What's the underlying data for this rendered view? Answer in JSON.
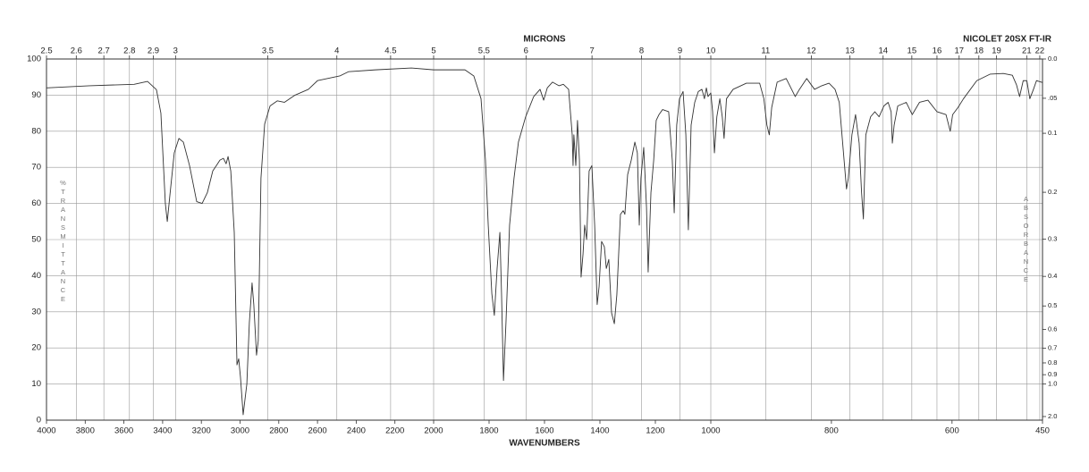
{
  "chart_data": {
    "type": "line",
    "title": "NICOLET 20SX FT-IR",
    "x_label": "WAVENUMBERS",
    "x2_label": "MICRONS",
    "y_label": "%TRANSMITTANCE",
    "y2_label": "ABSORBANCE",
    "color": "#333333",
    "grid": true,
    "xlim": [
      4000,
      450
    ],
    "x_scale_breaks": [
      2000,
      1000
    ],
    "xticks": [
      4000,
      3800,
      3600,
      3400,
      3200,
      3000,
      2800,
      2600,
      2400,
      2200,
      2000,
      1800,
      1600,
      1400,
      1200,
      1000,
      800,
      600,
      450
    ],
    "x2ticks": [
      2.5,
      2.6,
      2.7,
      2.8,
      2.9,
      3,
      3.5,
      4,
      4.5,
      5,
      5.5,
      6,
      7,
      8,
      9,
      10,
      11,
      12,
      13,
      14,
      15,
      16,
      17,
      18,
      19,
      21,
      22
    ],
    "ylim": [
      0,
      100
    ],
    "yticks": [
      0,
      10,
      20,
      30,
      40,
      50,
      60,
      70,
      80,
      90,
      100
    ],
    "y2ticks": [
      {
        "value": 0,
        "label": "0.0"
      },
      {
        "value": 0.05,
        "label": ".05"
      },
      0.1,
      0.2,
      0.3,
      0.4,
      0.5,
      0.6,
      0.7,
      0.8,
      0.9,
      {
        "value": 1,
        "label": "1.0"
      },
      {
        "value": 2,
        "label": "2.0"
      }
    ],
    "x": [
      4000,
      3778,
      3547,
      3478,
      3432,
      3409,
      3386,
      3376,
      3363,
      3340,
      3316,
      3293,
      3261,
      3224,
      3196,
      3169,
      3141,
      3122,
      3104,
      3086,
      3072,
      3062,
      3048,
      3030,
      3016,
      3007,
      2998,
      2984,
      2965,
      2952,
      2938,
      2929,
      2915,
      2906,
      2892,
      2873,
      2845,
      2808,
      2771,
      2716,
      2647,
      2600,
      2485,
      2439,
      2300,
      2115,
      2000,
      1887,
      1855,
      1829,
      1813,
      1803,
      1790,
      1781,
      1771,
      1761,
      1755,
      1748,
      1739,
      1726,
      1710,
      1694,
      1668,
      1639,
      1616,
      1603,
      1590,
      1571,
      1548,
      1532,
      1513,
      1500,
      1497,
      1494,
      1487,
      1481,
      1474,
      1468,
      1461,
      1455,
      1448,
      1439,
      1429,
      1419,
      1410,
      1403,
      1394,
      1384,
      1377,
      1368,
      1358,
      1348,
      1339,
      1326,
      1316,
      1310,
      1300,
      1287,
      1274,
      1265,
      1258,
      1252,
      1242,
      1232,
      1226,
      1216,
      1206,
      1197,
      1187,
      1174,
      1152,
      1139,
      1132,
      1123,
      1113,
      1100,
      1090,
      1081,
      1071,
      1058,
      1045,
      1032,
      1023,
      1016,
      1010,
      1000,
      997,
      994,
      990,
      985,
      981,
      978,
      974,
      963,
      941,
      919,
      912,
      907,
      903,
      899,
      890,
      875,
      860,
      853,
      841,
      828,
      816,
      804,
      794,
      787,
      779,
      775,
      772,
      766,
      760,
      754,
      750,
      747,
      743,
      735,
      728,
      721,
      713,
      706,
      701,
      699,
      696,
      690,
      676,
      666,
      654,
      640,
      625,
      610,
      603,
      599,
      590,
      581,
      559,
      537,
      515,
      500,
      493,
      488,
      482,
      476,
      471,
      465,
      460,
      450
    ],
    "values": [
      92,
      92.6,
      93,
      93.8,
      91.5,
      85,
      60,
      55,
      62,
      74,
      78,
      77,
      70.5,
      60.5,
      60,
      63,
      69,
      70.5,
      72,
      72.5,
      71,
      73,
      69,
      52,
      15.3,
      17,
      12,
      1.5,
      10,
      27,
      38,
      32,
      18,
      22,
      67,
      82,
      87,
      88.4,
      88,
      90,
      91.6,
      94,
      95.3,
      96.5,
      97,
      97.5,
      97,
      97,
      95.3,
      89,
      72,
      54,
      35,
      29,
      42,
      52,
      35,
      11,
      27,
      54,
      67,
      77,
      84,
      89.6,
      91.6,
      88.6,
      92,
      93.6,
      92.6,
      93,
      91.6,
      79,
      70.5,
      79,
      70.5,
      83,
      72,
      39.6,
      46,
      54,
      50,
      69,
      70.5,
      54,
      32,
      37,
      49.5,
      48,
      42,
      44.5,
      29.7,
      26.7,
      34.7,
      57,
      58,
      57,
      68,
      72,
      77,
      74,
      54,
      67,
      75.5,
      59,
      41,
      63,
      72,
      83,
      84.6,
      86,
      85.4,
      72,
      57.4,
      81.7,
      89,
      91,
      79,
      52.7,
      81.7,
      88,
      91,
      91.6,
      89,
      92,
      89.6,
      90.6,
      85.4,
      74,
      84,
      89,
      84,
      78,
      89,
      91.6,
      93.3,
      93.3,
      89,
      81.7,
      79,
      86.6,
      93.6,
      94.6,
      89.6,
      91.6,
      94.6,
      91.6,
      92.6,
      93.3,
      91.6,
      88,
      72,
      64,
      67,
      79,
      84.6,
      76.7,
      63,
      55.7,
      79,
      84,
      85.4,
      84,
      87,
      88,
      85.4,
      76.7,
      81.7,
      87,
      88,
      84.6,
      88,
      88.6,
      85.4,
      84.6,
      80,
      84.6,
      86.6,
      89,
      94,
      95.8,
      96,
      95.5,
      92.8,
      89.6,
      94,
      94,
      89,
      91.6,
      94,
      93.5
    ]
  }
}
